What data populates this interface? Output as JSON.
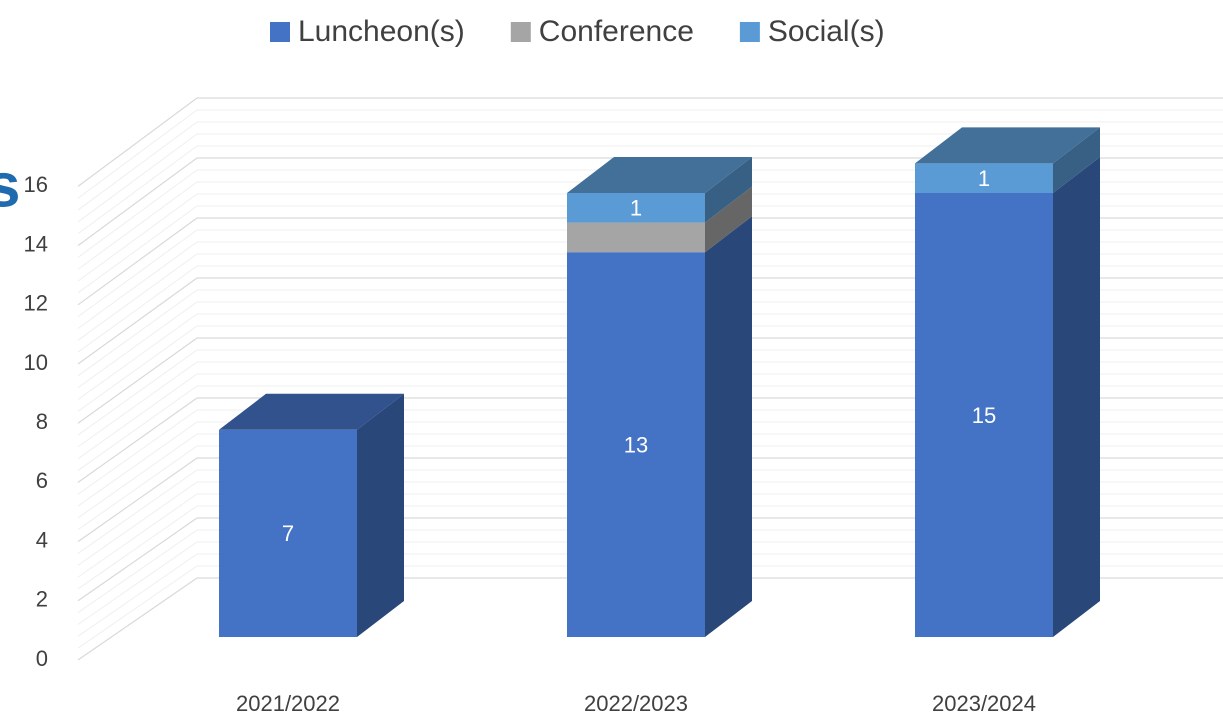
{
  "chart_data": {
    "type": "bar3d_stacked",
    "title": "s",
    "categories": [
      "2021/2022",
      "2022/2023",
      "2023/2024"
    ],
    "series": [
      {
        "name": "Luncheon(s)",
        "color": "#4472c4",
        "values": [
          7,
          13,
          15
        ],
        "data_labels": true
      },
      {
        "name": "Conference",
        "color": "#a5a5a5",
        "values": [
          null,
          1,
          null
        ],
        "data_labels": false
      },
      {
        "name": "Social(s)",
        "color": "#5b9bd5",
        "values": [
          null,
          1,
          1
        ],
        "data_labels": true
      }
    ],
    "ylim": [
      0,
      16
    ],
    "yticks": [
      0,
      2,
      4,
      6,
      8,
      10,
      12,
      14,
      16
    ],
    "grid": true,
    "legend": "top"
  }
}
